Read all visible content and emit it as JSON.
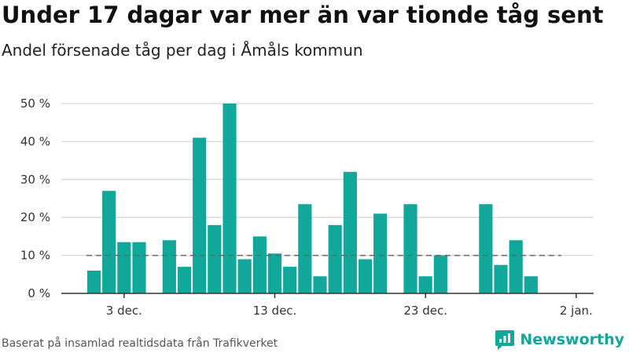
{
  "title": "Under 17 dagar var mer än var tionde tåg sent",
  "subtitle": "Andel försenade tåg per dag i Åmåls kommun",
  "footer": "Baserat på insamlad realtidsdata från Trafikverket",
  "brand": "Newsworthy",
  "colors": {
    "bar": "#11a89b",
    "grid": "#dddddd",
    "reference": "#666666",
    "axis": "#333333"
  },
  "chart_data": {
    "type": "bar",
    "x_start": "2020-12-01",
    "x_end": "2021-01-01",
    "x": [
      "2020-12-01",
      "2020-12-02",
      "2020-12-03",
      "2020-12-04",
      "2020-12-05",
      "2020-12-06",
      "2020-12-07",
      "2020-12-08",
      "2020-12-09",
      "2020-12-10",
      "2020-12-11",
      "2020-12-12",
      "2020-12-13",
      "2020-12-14",
      "2020-12-15",
      "2020-12-16",
      "2020-12-17",
      "2020-12-18",
      "2020-12-19",
      "2020-12-20",
      "2020-12-21",
      "2020-12-22",
      "2020-12-23",
      "2020-12-24",
      "2020-12-25",
      "2020-12-26",
      "2020-12-27",
      "2020-12-28",
      "2020-12-29",
      "2020-12-30"
    ],
    "values": [
      6,
      27,
      13.5,
      13.5,
      null,
      14,
      7,
      41,
      18,
      50,
      9,
      15,
      10.5,
      7,
      23.5,
      4.5,
      18,
      32,
      9,
      21,
      null,
      23.5,
      4.5,
      10,
      null,
      null,
      23.5,
      7.5,
      14,
      4.5
    ],
    "unit": "%",
    "ylim": [
      0,
      50
    ],
    "y_ticks": [
      0,
      10,
      20,
      30,
      40,
      50
    ],
    "y_tick_labels": [
      "0 %",
      "10 %",
      "20 %",
      "30 %",
      "40 %",
      "50 %"
    ],
    "x_ticks": [
      "2020-12-03",
      "2020-12-13",
      "2020-12-23",
      "2021-01-02"
    ],
    "x_tick_labels": [
      "3 dec.",
      "13 dec.",
      "23 dec.",
      "2 jan."
    ],
    "reference_line": 10,
    "grid": true,
    "legend": "none"
  }
}
